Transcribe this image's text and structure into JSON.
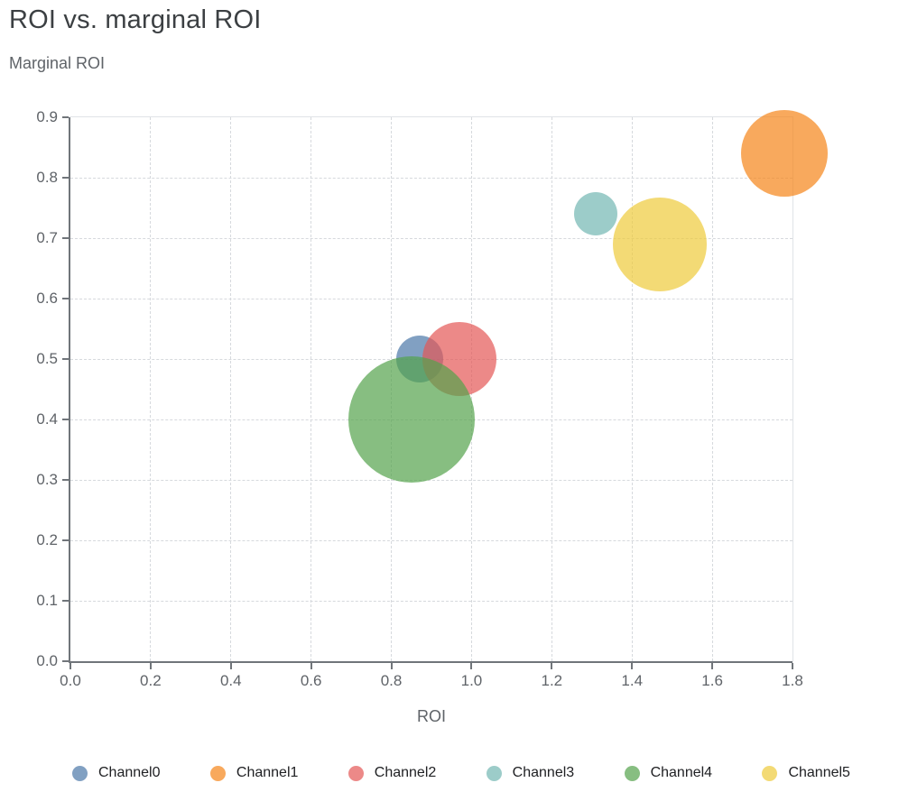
{
  "chart_data": {
    "type": "scatter",
    "subtype": "bubble",
    "title": "ROI vs. marginal ROI",
    "xlabel": "ROI",
    "ylabel": "Marginal ROI",
    "xlim": [
      0,
      1.8
    ],
    "ylim": [
      0,
      0.9
    ],
    "x_ticks": [
      0,
      0.2,
      0.4,
      0.6,
      0.8,
      1.0,
      1.2,
      1.4,
      1.6,
      1.8
    ],
    "x_tick_labels": [
      "0.0",
      "0.2",
      "0.4",
      "0.6",
      "0.8",
      "1.0",
      "1.2",
      "1.4",
      "1.6",
      "1.8"
    ],
    "y_ticks": [
      0,
      0.1,
      0.2,
      0.3,
      0.4,
      0.5,
      0.6,
      0.7,
      0.8,
      0.9
    ],
    "y_tick_labels": [
      "0.0",
      "0.1",
      "0.2",
      "0.3",
      "0.4",
      "0.5",
      "0.6",
      "0.7",
      "0.8",
      "0.9"
    ],
    "grid": "dashed",
    "legend_position": "bottom",
    "bubble_opacity": 0.7,
    "series": [
      {
        "name": "Channel0",
        "color": "#4c78a8",
        "roi": 0.87,
        "marginal_roi": 0.5,
        "radius_px": 26
      },
      {
        "name": "Channel1",
        "color": "#f58518",
        "roi": 1.78,
        "marginal_roi": 0.84,
        "radius_px": 48
      },
      {
        "name": "Channel2",
        "color": "#e45756",
        "roi": 0.97,
        "marginal_roi": 0.5,
        "radius_px": 41
      },
      {
        "name": "Channel3",
        "color": "#72b7b2",
        "roi": 1.31,
        "marginal_roi": 0.74,
        "radius_px": 24
      },
      {
        "name": "Channel4",
        "color": "#54a24b",
        "roi": 0.85,
        "marginal_roi": 0.4,
        "radius_px": 70
      },
      {
        "name": "Channel5",
        "color": "#eeca3b",
        "roi": 1.47,
        "marginal_roi": 0.69,
        "radius_px": 52
      }
    ]
  },
  "colors": {
    "title_text": "#3c4043",
    "axis_text": "#5f6368",
    "axis_line": "#70757a",
    "gridline": "#d6d9dd",
    "plot_border": "#e0e3e7",
    "legend_text": "#202124",
    "background": "#ffffff"
  }
}
